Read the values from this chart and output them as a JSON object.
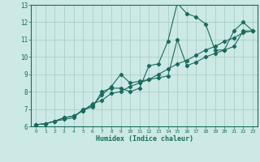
{
  "xlabel": "Humidex (Indice chaleur)",
  "ylabel": "",
  "xlim": [
    -0.5,
    23.5
  ],
  "ylim": [
    6,
    13
  ],
  "xticks": [
    0,
    1,
    2,
    3,
    4,
    5,
    6,
    7,
    8,
    9,
    10,
    11,
    12,
    13,
    14,
    15,
    16,
    17,
    18,
    19,
    20,
    21,
    22,
    23
  ],
  "yticks": [
    6,
    7,
    8,
    9,
    10,
    11,
    12,
    13
  ],
  "bg_color": "#cce9e5",
  "line_color": "#1a6b5e",
  "grid_color": "#aacfcb",
  "line1_x": [
    0,
    1,
    2,
    3,
    4,
    5,
    6,
    7,
    8,
    9,
    10,
    11,
    12,
    13,
    14,
    15,
    16,
    17,
    18,
    19,
    20,
    21,
    22,
    23
  ],
  "line1_y": [
    6.1,
    6.15,
    6.3,
    6.4,
    6.5,
    7.0,
    7.1,
    8.0,
    8.2,
    8.2,
    8.0,
    8.2,
    9.5,
    9.6,
    10.9,
    13.1,
    12.5,
    12.3,
    11.9,
    10.4,
    10.4,
    11.5,
    12.0,
    11.5
  ],
  "line2_x": [
    0,
    1,
    2,
    3,
    4,
    5,
    6,
    7,
    8,
    9,
    10,
    11,
    12,
    13,
    14,
    15,
    16,
    17,
    18,
    19,
    20,
    21,
    22,
    23
  ],
  "line2_y": [
    6.1,
    6.15,
    6.3,
    6.5,
    6.6,
    6.9,
    7.2,
    7.8,
    8.3,
    9.0,
    8.5,
    8.6,
    8.7,
    8.8,
    8.9,
    11.0,
    9.5,
    9.7,
    10.0,
    10.2,
    10.4,
    10.6,
    11.5,
    11.5
  ],
  "line3_x": [
    0,
    1,
    2,
    3,
    4,
    5,
    6,
    7,
    8,
    9,
    10,
    11,
    12,
    13,
    14,
    15,
    16,
    17,
    18,
    19,
    20,
    21,
    22,
    23
  ],
  "line3_y": [
    6.1,
    6.15,
    6.3,
    6.5,
    6.6,
    6.9,
    7.3,
    7.5,
    7.9,
    8.0,
    8.3,
    8.5,
    8.7,
    9.0,
    9.3,
    9.6,
    9.8,
    10.1,
    10.4,
    10.6,
    10.9,
    11.1,
    11.4,
    11.5
  ]
}
